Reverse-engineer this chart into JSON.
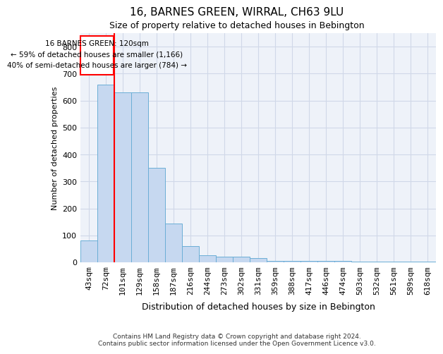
{
  "title": "16, BARNES GREEN, WIRRAL, CH63 9LU",
  "subtitle": "Size of property relative to detached houses in Bebington",
  "xlabel": "Distribution of detached houses by size in Bebington",
  "ylabel": "Number of detached properties",
  "footer": "Contains HM Land Registry data © Crown copyright and database right 2024.\nContains public sector information licensed under the Open Government Licence v3.0.",
  "bin_labels": [
    "43sqm",
    "72sqm",
    "101sqm",
    "129sqm",
    "158sqm",
    "187sqm",
    "216sqm",
    "244sqm",
    "273sqm",
    "302sqm",
    "331sqm",
    "359sqm",
    "388sqm",
    "417sqm",
    "446sqm",
    "474sqm",
    "503sqm",
    "532sqm",
    "561sqm",
    "589sqm",
    "618sqm"
  ],
  "bar_heights": [
    82,
    660,
    630,
    630,
    350,
    145,
    60,
    25,
    20,
    20,
    15,
    5,
    5,
    5,
    5,
    5,
    2,
    2,
    2,
    2,
    2
  ],
  "bar_color": "#c6d8f0",
  "bar_edge_color": "#6baed6",
  "red_line_x": 1.5,
  "annotation_line1": "16 BARNES GREEN: 120sqm",
  "annotation_line2": "← 59% of detached houses are smaller (1,166)",
  "annotation_line3": "40% of semi-detached houses are larger (784) →",
  "ylim": [
    0,
    850
  ],
  "yticks": [
    0,
    100,
    200,
    300,
    400,
    500,
    600,
    700,
    800
  ],
  "background_color": "#eef2f9",
  "grid_color": "#d0d8e8",
  "title_fontsize": 11,
  "subtitle_fontsize": 9,
  "ylabel_fontsize": 8,
  "tick_fontsize": 8,
  "annotation_fontsize": 7.5,
  "footer_fontsize": 6.5
}
